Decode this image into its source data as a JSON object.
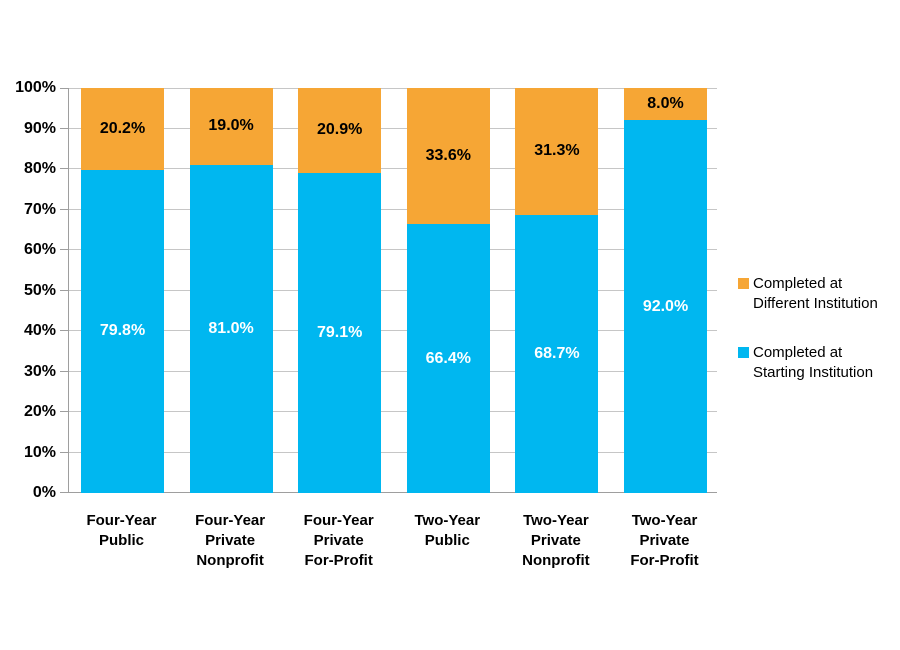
{
  "chart_data": {
    "type": "bar",
    "subtype": "stacked-column-percent",
    "title": "",
    "xlabel": "",
    "ylabel": "",
    "categories": [
      [
        "Four-Year",
        "Public"
      ],
      [
        "Four-Year",
        "Private",
        "Nonprofit"
      ],
      [
        "Four-Year",
        "Private",
        "For-Profit"
      ],
      [
        "Two-Year",
        "Public"
      ],
      [
        "Two-Year",
        "Private",
        "Nonprofit"
      ],
      [
        "Two-Year",
        "Private",
        "For-Profit"
      ]
    ],
    "series": [
      {
        "name": "Completed at Starting Institution",
        "color": "#00B7F0",
        "label_color": "#FFFFFF",
        "values": [
          79.8,
          81.0,
          79.1,
          66.4,
          68.7,
          92.0
        ],
        "labels": [
          "79.8%",
          "81.0%",
          "79.1%",
          "66.4%",
          "68.7%",
          "92.0%"
        ]
      },
      {
        "name": "Completed at Different Institution",
        "color": "#F6A635",
        "label_color": "#000000",
        "values": [
          20.2,
          19.0,
          20.9,
          33.6,
          31.3,
          8.0
        ],
        "labels": [
          "20.2%",
          "19.0%",
          "20.9%",
          "33.6%",
          "31.3%",
          "8.0%"
        ]
      }
    ],
    "y_axis": {
      "min": 0,
      "max": 100,
      "step": 10,
      "ticks": [
        "0%",
        "10%",
        "20%",
        "30%",
        "40%",
        "50%",
        "60%",
        "70%",
        "80%",
        "90%",
        "100%"
      ]
    },
    "legend_position": "right",
    "legend": [
      {
        "lines": [
          "Completed at",
          "Different Institution"
        ],
        "color": "#F6A635"
      },
      {
        "lines": [
          "Completed at",
          "Starting Institution"
        ],
        "color": "#00B7F0"
      }
    ],
    "grid": true,
    "colors": {
      "gridline": "#C6C6C6",
      "axis": "#9E9E9E",
      "background": "#FFFFFF",
      "tick_label": "#000000"
    }
  }
}
